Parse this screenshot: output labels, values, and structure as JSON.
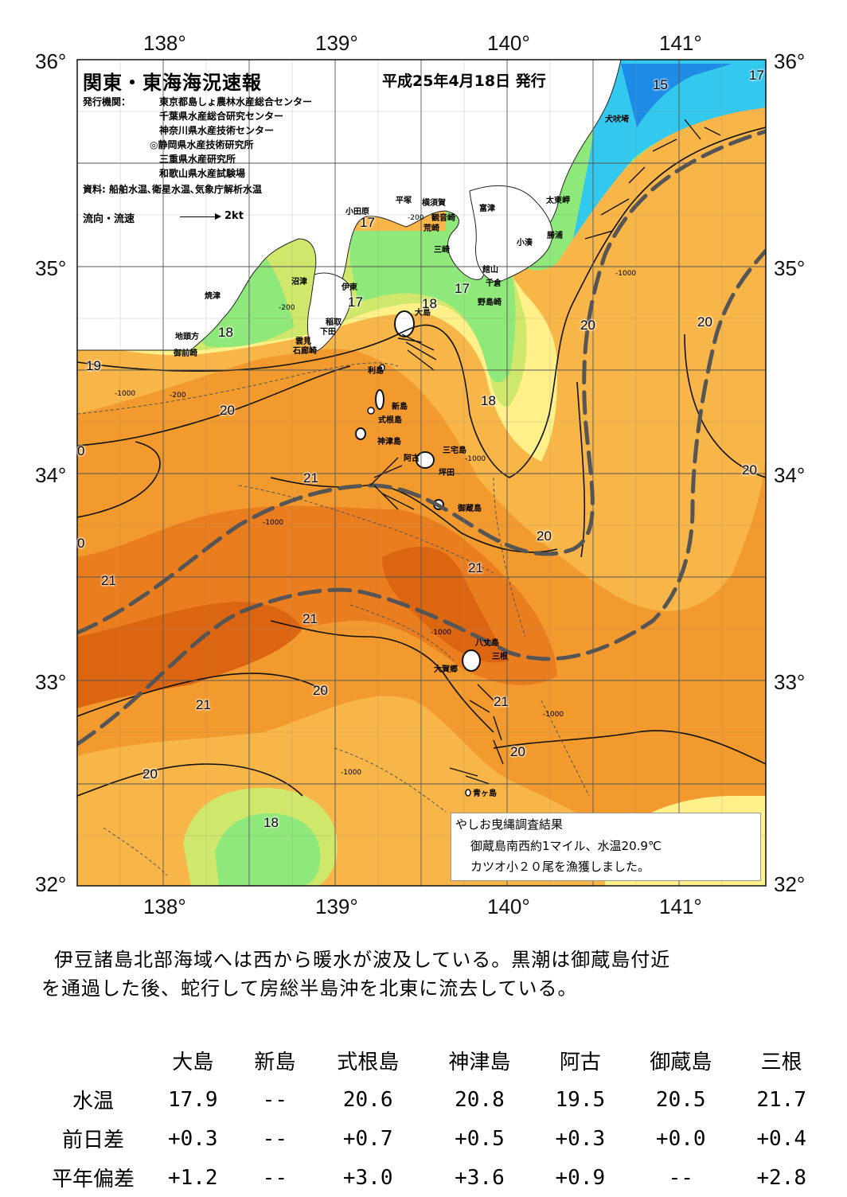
{
  "map": {
    "title": "関東・東海海況速報",
    "issue_date": "平成25年4月18日 発行",
    "org_label": "発行機関：",
    "organizations": [
      "東京都島しょ農林水産総合センター",
      "千葉県水産総合研究センター",
      "神奈川県水産技術センター",
      "◎静岡県水産技術研究所",
      "三重県水産研究所",
      "和歌山県水産試験場"
    ],
    "sources": "資料: 船舶水温､衛星水温､気象庁解析水温",
    "legend": {
      "label": "流向・流速",
      "scale": "2kt"
    },
    "lon_labels": [
      "138°",
      "139°",
      "140°",
      "141°"
    ],
    "lat_labels": [
      "36°",
      "35°",
      "34°",
      "33°",
      "32°"
    ],
    "colors": {
      "t15": "#1e8ce6",
      "t16": "#33c8ee",
      "t17": "#8fe87a",
      "t18": "#cfe86b",
      "t19": "#fff08a",
      "t20": "#f9b648",
      "t21": "#f29a2e",
      "t22": "#ea7d1e",
      "t23": "#dc6512",
      "kuroshio_axis": "#555555"
    },
    "places": [
      "犬吠埼",
      "太東岬",
      "勝浦",
      "小湊",
      "富津",
      "横須賀",
      "平塚",
      "小田原",
      "観音崎",
      "荒崎",
      "三崎",
      "館山",
      "千倉",
      "野島崎",
      "沼津",
      "伊東",
      "焼津",
      "稲取",
      "下田",
      "雲見",
      "石廊崎",
      "地頭方",
      "御前崎",
      "大島",
      "利島",
      "新島",
      "式根島",
      "神津島",
      "三宅島",
      "阿古",
      "坪田",
      "御蔵島",
      "八丈島",
      "三根",
      "大賀郷",
      "青ヶ島"
    ],
    "isotherm_labels": [
      "15",
      "17",
      "17",
      "17",
      "17",
      "18",
      "18",
      "18",
      "18",
      "19",
      "20",
      "20",
      "20",
      "20",
      "20",
      "20",
      "20",
      "20",
      "0",
      "0",
      "21",
      "21",
      "21",
      "21",
      "21",
      "21"
    ],
    "depth_labels": [
      "-1000",
      "-200"
    ],
    "note": {
      "line1": "やしお曳縄調査結果",
      "line2": "御蔵島南西約1マイル、水温20.9℃",
      "line3": "カツオ小２０尾を漁獲しました。"
    }
  },
  "summary": {
    "line1": "伊豆諸島北部海域へは西から暖水が波及している。黒潮は御蔵島付近",
    "line2": "を通過した後、蛇行して房総半島沖を北東に流去している。"
  },
  "table": {
    "stations": [
      "大島",
      "新島",
      "式根島",
      "神津島",
      "阿古",
      "御蔵島",
      "三根"
    ],
    "rows": [
      {
        "label": "水温",
        "values": [
          "17.9",
          "--",
          "20.6",
          "20.8",
          "19.5",
          "20.5",
          "21.7"
        ]
      },
      {
        "label": "前日差",
        "values": [
          "+0.3",
          "--",
          "+0.7",
          "+0.5",
          "+0.3",
          "+0.0",
          "+0.4"
        ]
      },
      {
        "label": "平年偏差",
        "values": [
          "+1.2",
          "--",
          "+3.0",
          "+3.6",
          "+0.9",
          "--",
          "+2.8"
        ]
      }
    ]
  }
}
